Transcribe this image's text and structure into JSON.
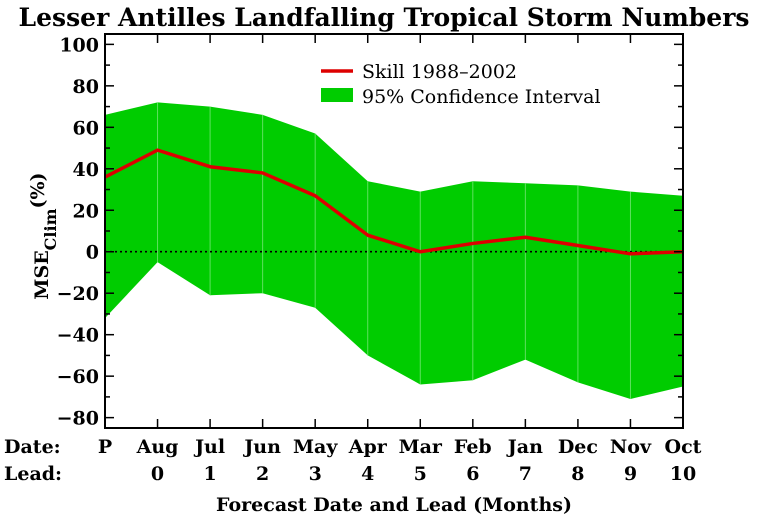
{
  "chart_data": {
    "type": "area",
    "title": "Lesser Antilles Landfalling Tropical Storm Numbers",
    "xlabel": "Forecast Date and Lead (Months)",
    "ylabel_main": "MSE",
    "ylabel_sub": "Clim",
    "ylabel_unit": "(%)",
    "row_labels": {
      "date": "Date:",
      "lead": "Lead:"
    },
    "categories": [
      "P",
      "Aug",
      "Jul",
      "Jun",
      "May",
      "Apr",
      "Mar",
      "Feb",
      "Jan",
      "Dec",
      "Nov",
      "Oct"
    ],
    "leads": [
      "",
      "0",
      "1",
      "2",
      "3",
      "4",
      "5",
      "6",
      "7",
      "8",
      "9",
      "10"
    ],
    "ylim": [
      -85,
      105
    ],
    "yticks": [
      -80,
      -60,
      -40,
      -20,
      0,
      20,
      40,
      60,
      80,
      100
    ],
    "series": [
      {
        "name": "Skill 1988–2002",
        "color": "#dd0000",
        "values": [
          36,
          49,
          41,
          38,
          27,
          8,
          0,
          4,
          7,
          3,
          -1,
          0
        ]
      }
    ],
    "band": {
      "name": "95% Confidence Interval",
      "color": "#00cc00",
      "upper": [
        66,
        72,
        70,
        66,
        57,
        34,
        29,
        34,
        33,
        32,
        29,
        27
      ],
      "lower": [
        -32,
        -5,
        -21,
        -20,
        -27,
        -50,
        -64,
        -62,
        -52,
        -63,
        -71,
        -65
      ]
    },
    "reference_line": 0,
    "legend_position": "top-right"
  }
}
